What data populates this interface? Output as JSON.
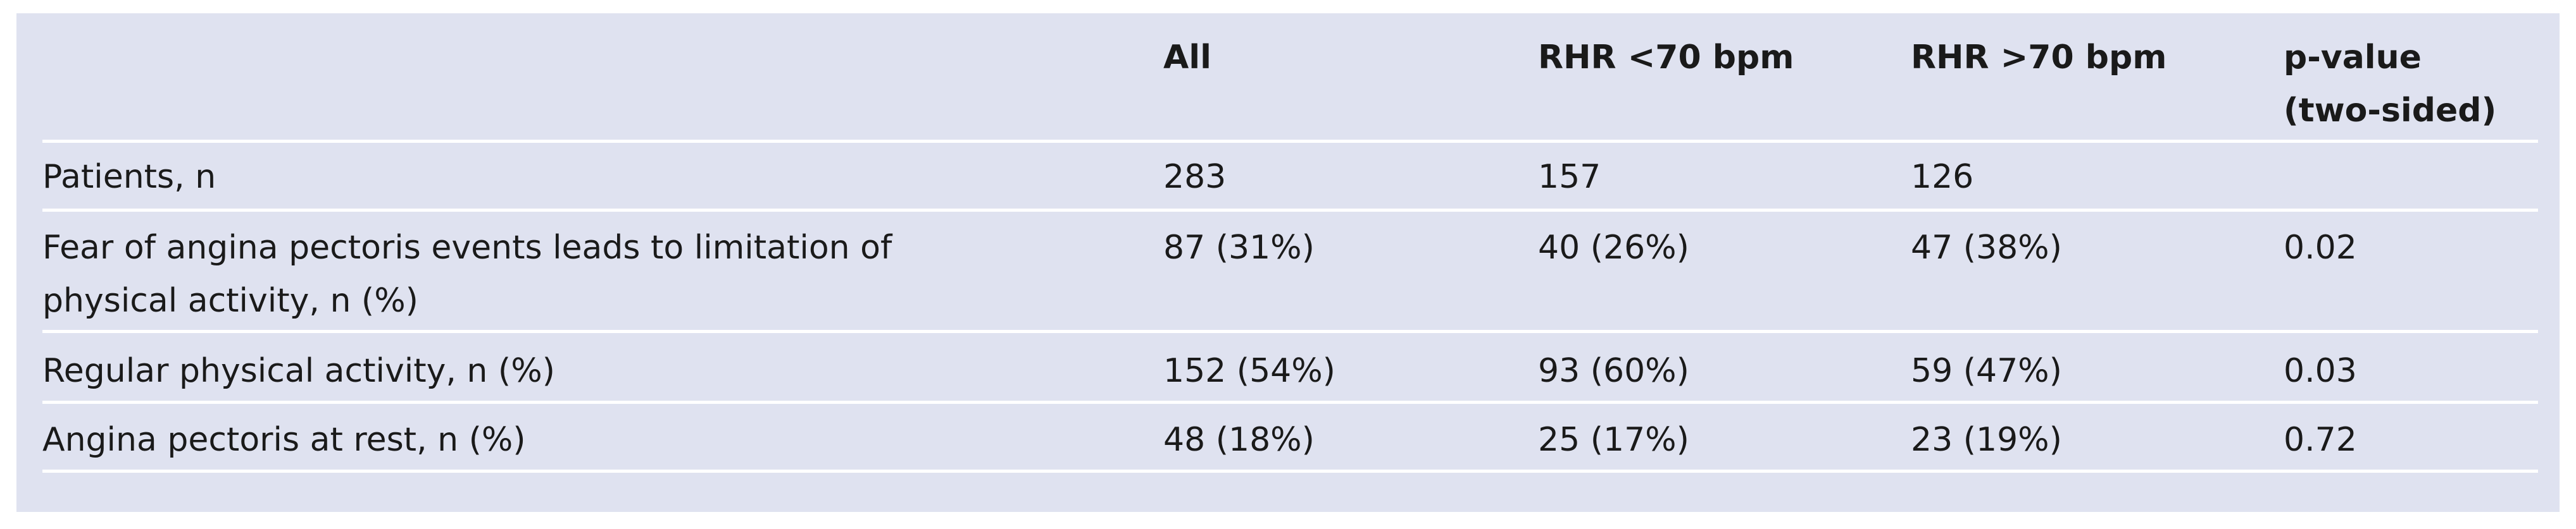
{
  "table": {
    "header": [
      "All",
      "RHR <70 bpm",
      "RHR >70 bpm",
      "p-value\n(two-sided)"
    ],
    "rows": [
      [
        "Patients, n",
        "283",
        "157",
        "126"
      ],
      [
        "Fear of angina pectoris events leads to limitation of physical activity, n (%)",
        "87 (31%)",
        "40 (26%)",
        "47 (38%)",
        "0.02"
      ],
      [
        "Regular physical activity, n (%)",
        "152 (54%)",
        "93 (60%)",
        "59 (47%)",
        "0.03"
      ],
      [
        "Angina pectoris at rest, n (%)",
        "48 (18%)",
        "25 (17%)",
        "23 (19%)",
        "0.72"
      ]
    ]
  }
}
